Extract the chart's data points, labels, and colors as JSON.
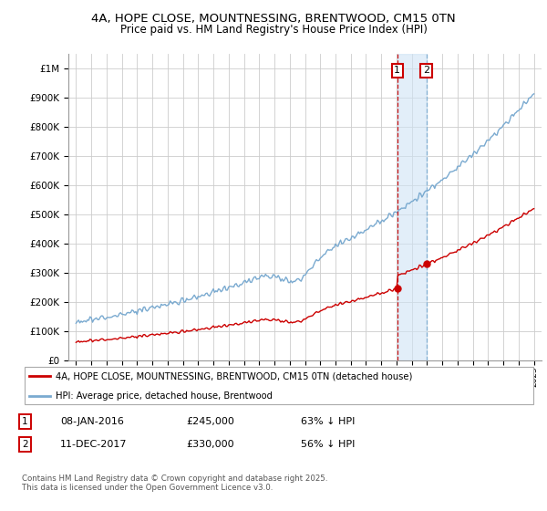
{
  "title_line1": "4A, HOPE CLOSE, MOUNTNESSING, BRENTWOOD, CM15 0TN",
  "title_line2": "Price paid vs. HM Land Registry's House Price Index (HPI)",
  "background_color": "#ffffff",
  "plot_bg_color": "#ffffff",
  "grid_color": "#cccccc",
  "hpi_color": "#7aaad0",
  "price_color": "#cc0000",
  "sale1": {
    "date_num": 2016.05,
    "price": 245000,
    "label": "1",
    "date_str": "08-JAN-2016",
    "pct": "63% ↓ HPI"
  },
  "sale2": {
    "date_num": 2017.95,
    "price": 330000,
    "label": "2",
    "date_str": "11-DEC-2017",
    "pct": "56% ↓ HPI"
  },
  "ylim_min": 0,
  "ylim_max": 1050000,
  "xlim_min": 1994.5,
  "xlim_max": 2025.5,
  "legend_entry1": "4A, HOPE CLOSE, MOUNTNESSING, BRENTWOOD, CM15 0TN (detached house)",
  "legend_entry2": "HPI: Average price, detached house, Brentwood",
  "footer": "Contains HM Land Registry data © Crown copyright and database right 2025.\nThis data is licensed under the Open Government Licence v3.0.",
  "yticks": [
    0,
    100000,
    200000,
    300000,
    400000,
    500000,
    600000,
    700000,
    800000,
    900000,
    1000000
  ],
  "ytick_labels": [
    "£0",
    "£100K",
    "£200K",
    "£300K",
    "£400K",
    "£500K",
    "£600K",
    "£700K",
    "£800K",
    "£900K",
    "£1M"
  ],
  "xticks": [
    1995,
    1996,
    1997,
    1998,
    1999,
    2000,
    2001,
    2002,
    2003,
    2004,
    2005,
    2006,
    2007,
    2008,
    2009,
    2010,
    2011,
    2012,
    2013,
    2014,
    2015,
    2016,
    2017,
    2018,
    2019,
    2020,
    2021,
    2022,
    2023,
    2024,
    2025
  ]
}
